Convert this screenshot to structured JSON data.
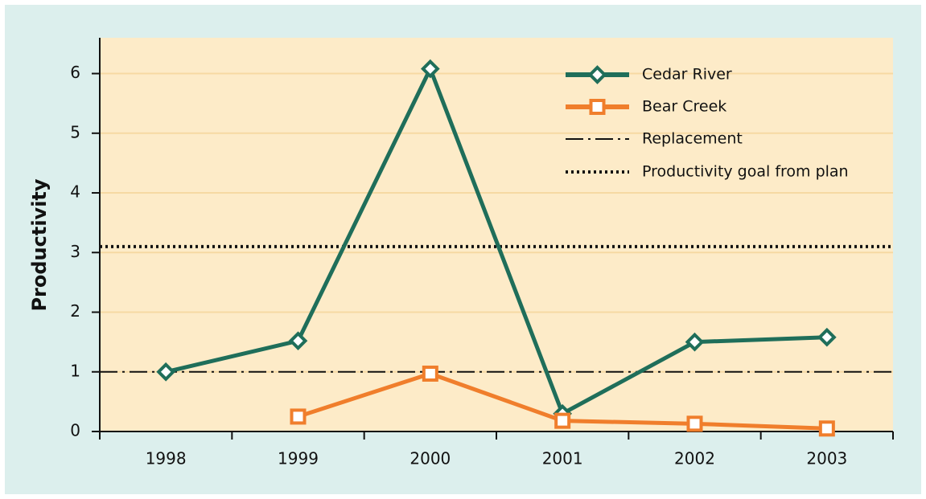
{
  "chart_data": {
    "type": "line",
    "y_label": "Productivity",
    "categories": [
      "1998",
      "1999",
      "2000",
      "2001",
      "2002",
      "2003"
    ],
    "series": [
      {
        "name": "Cedar River",
        "color": "#1f6e5a",
        "marker": "diamond",
        "values": [
          1.0,
          1.52,
          6.08,
          0.3,
          1.5,
          1.58
        ]
      },
      {
        "name": "Bear Creek",
        "color": "#f07e2c",
        "marker": "square",
        "values": [
          null,
          0.25,
          0.97,
          0.18,
          0.13,
          0.05
        ]
      }
    ],
    "reference_lines": [
      {
        "name": "Replacement",
        "value": 1,
        "style": "dashdot",
        "color": "#111111"
      },
      {
        "name": "Productivity goal from plan",
        "value": 3.1,
        "style": "dotted",
        "color": "#111111"
      }
    ],
    "ylim": [
      0,
      6.6
    ],
    "yticks": [
      0,
      1,
      2,
      3,
      4,
      5,
      6
    ],
    "grid": true
  }
}
